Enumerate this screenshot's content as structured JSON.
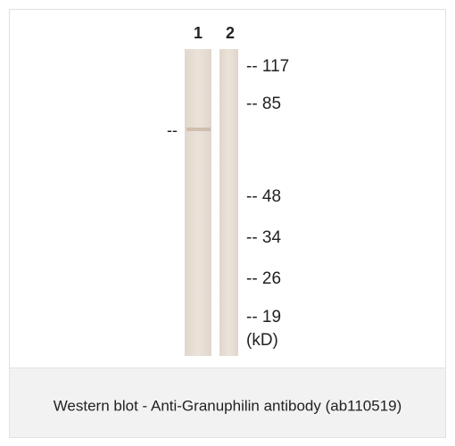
{
  "figure": {
    "lanes": [
      "1",
      "2"
    ],
    "band_marker": "--",
    "markers": [
      "-- 117",
      "-- 85",
      "-- 48",
      "-- 34",
      "-- 26",
      "-- 19"
    ],
    "unit": "(kD)",
    "caption": "Western blot - Anti-Granuphilin antibody (ab110519)"
  }
}
